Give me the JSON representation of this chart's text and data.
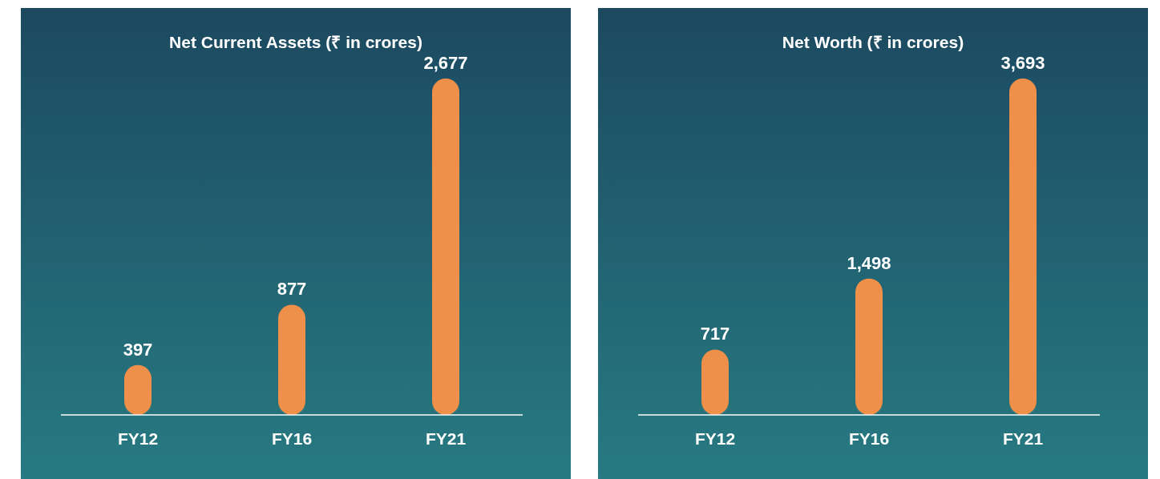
{
  "chart_data": [
    {
      "type": "bar",
      "title": "Net Current Assets (₹ in crores)",
      "categories": [
        "FY12",
        "FY16",
        "FY21"
      ],
      "values": [
        397,
        877,
        2677
      ],
      "value_labels": [
        "397",
        "877",
        "2,677"
      ],
      "color": "#ee8f4a"
    },
    {
      "type": "bar",
      "title": "Net Worth (₹ in crores)",
      "categories": [
        "FY12",
        "FY16",
        "FY21"
      ],
      "values": [
        717,
        1498,
        3693
      ],
      "value_labels": [
        "717",
        "1,498",
        "3,693"
      ],
      "color": "#ee8f4a"
    }
  ]
}
